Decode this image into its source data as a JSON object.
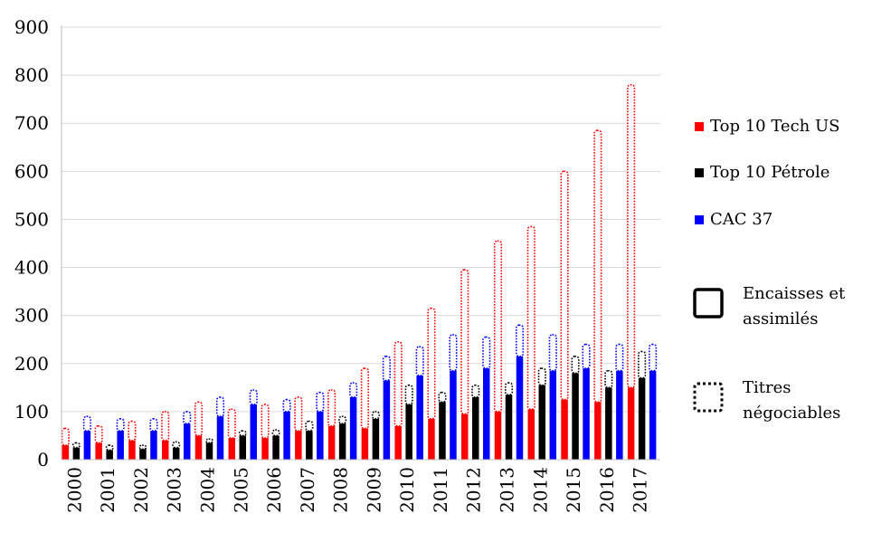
{
  "chart_data": {
    "type": "bar",
    "stacked": true,
    "ylim": [
      0,
      900
    ],
    "yticks": [
      0,
      100,
      200,
      300,
      400,
      500,
      600,
      700,
      800,
      900
    ],
    "grid": true,
    "legend_position": "right",
    "categories": [
      "2000",
      "2001",
      "2002",
      "2003",
      "2004",
      "2005",
      "2006",
      "2007",
      "2008",
      "2009",
      "2010",
      "2011",
      "2012",
      "2013",
      "2014",
      "2015",
      "2016",
      "2017"
    ],
    "groups": [
      {
        "name": "Top 10 Tech US",
        "color": "#ff0000",
        "cash": [
          30,
          35,
          40,
          40,
          50,
          45,
          45,
          60,
          70,
          65,
          70,
          85,
          95,
          100,
          105,
          125,
          120,
          150
        ],
        "securities": [
          35,
          35,
          40,
          60,
          70,
          60,
          70,
          70,
          75,
          125,
          175,
          230,
          300,
          355,
          380,
          475,
          565,
          630
        ]
      },
      {
        "name": "Top 10 Pétrole",
        "color": "#000000",
        "cash": [
          25,
          20,
          22,
          25,
          35,
          50,
          50,
          60,
          75,
          85,
          115,
          120,
          130,
          135,
          155,
          180,
          150,
          170
        ],
        "securities": [
          10,
          10,
          8,
          12,
          8,
          10,
          12,
          20,
          15,
          15,
          40,
          20,
          25,
          25,
          35,
          35,
          35,
          55
        ]
      },
      {
        "name": "CAC 37",
        "color": "#0000ff",
        "cash": [
          60,
          60,
          60,
          75,
          90,
          115,
          100,
          100,
          130,
          165,
          175,
          185,
          190,
          215,
          185,
          190,
          185,
          185
        ],
        "securities": [
          30,
          25,
          25,
          25,
          40,
          30,
          25,
          40,
          30,
          50,
          60,
          75,
          65,
          65,
          75,
          50,
          55,
          55
        ]
      }
    ],
    "legend": [
      {
        "label": "Top 10 Tech US",
        "color": "#ff0000",
        "kind": "series"
      },
      {
        "label": "Top 10 Pétrole",
        "color": "#000000",
        "kind": "series"
      },
      {
        "label": "CAC 37",
        "color": "#0000ff",
        "kind": "series"
      },
      {
        "label": "Encaisses et assimilés",
        "kind": "pattern-solid"
      },
      {
        "label": "Titres négociables",
        "kind": "pattern-dotted"
      }
    ]
  }
}
